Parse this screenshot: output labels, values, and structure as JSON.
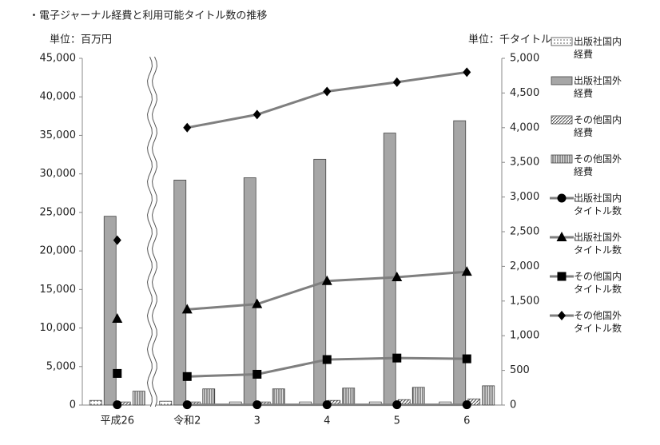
{
  "chart_data": {
    "type": "bar_line",
    "title": "・電子ジャーナル経費と利用可能タイトル数の推移",
    "y_unit": "単位：百万円",
    "y2_unit": "単位：千タイトル",
    "categories": [
      "平成26",
      "令和2",
      "3",
      "4",
      "5",
      "6"
    ],
    "x_break_after": 0,
    "ylim": [
      0,
      45000
    ],
    "yticks": [
      0,
      {
        "value": 5000,
        "label": "5,000"
      },
      {
        "value": 10000,
        "label": "10,000"
      },
      {
        "value": 15000,
        "label": "15,000"
      },
      {
        "value": 20000,
        "label": "20,000"
      },
      {
        "value": 25000,
        "label": "25,000"
      },
      {
        "value": 30000,
        "label": "30,000"
      },
      {
        "value": 35000,
        "label": "35,000"
      },
      {
        "value": 40000,
        "label": "40,000"
      },
      {
        "value": 45000,
        "label": "45,000"
      }
    ],
    "y2lim": [
      0,
      5000
    ],
    "y2ticks": [
      0,
      500,
      {
        "value": 1000,
        "label": "1,000"
      },
      {
        "value": 1500,
        "label": "1,500"
      },
      {
        "value": 2000,
        "label": "2,000"
      },
      {
        "value": 2500,
        "label": "2,500"
      },
      {
        "value": 3000,
        "label": "3,000"
      },
      {
        "value": 3500,
        "label": "3,500"
      },
      {
        "value": 4000,
        "label": "4,000"
      },
      {
        "value": 4500,
        "label": "4,500"
      },
      {
        "value": 5000,
        "label": "5,000"
      }
    ],
    "series": [
      {
        "name": "出版社国内経費",
        "kind": "bar",
        "pattern": "dots",
        "values": [
          600,
          500,
          400,
          400,
          400,
          400
        ]
      },
      {
        "name": "出版社国外経費",
        "kind": "bar",
        "color": "#a6a6a6",
        "values": [
          24500,
          29200,
          29500,
          31900,
          35300,
          36900
        ]
      },
      {
        "name": "その他国内経費",
        "kind": "bar",
        "pattern": "diagonal",
        "values": [
          400,
          400,
          400,
          600,
          700,
          800
        ]
      },
      {
        "name": "その他国外経費",
        "kind": "bar",
        "pattern": "vertical",
        "values": [
          1800,
          2100,
          2100,
          2200,
          2300,
          2500
        ]
      },
      {
        "name": "出版社国内タイトル数",
        "kind": "line",
        "axis": "y2",
        "color": "#7f7f7f",
        "marker": "circle",
        "values": [
          5,
          5,
          5,
          5,
          5,
          5
        ]
      },
      {
        "name": "出版社国外タイトル数",
        "kind": "line",
        "axis": "y2",
        "color": "#7f7f7f",
        "marker": "triangle",
        "values": [
          1244,
          1378,
          1456,
          1789,
          1844,
          1922
        ]
      },
      {
        "name": "その他国内タイトル数",
        "kind": "line",
        "axis": "y2",
        "color": "#7f7f7f",
        "marker": "square",
        "values": [
          456,
          411,
          444,
          656,
          678,
          667
        ]
      },
      {
        "name": "その他国外タイトル数",
        "kind": "line",
        "axis": "y2",
        "color": "#7f7f7f",
        "marker": "diamond",
        "values": [
          2378,
          4000,
          4189,
          4522,
          4656,
          4800
        ]
      }
    ]
  }
}
